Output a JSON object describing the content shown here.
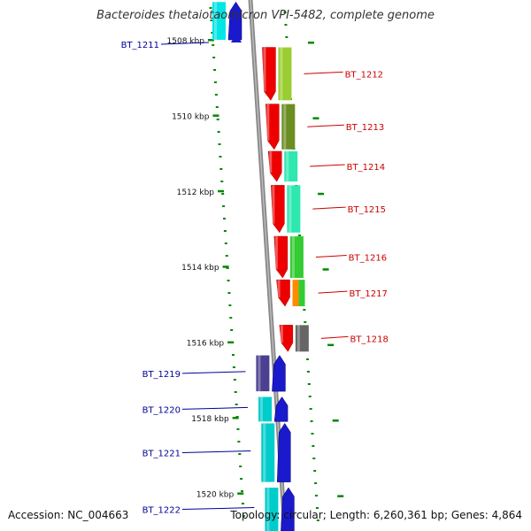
{
  "title": "Bacteroides thetaiotaomicron VPI-5482, complete genome",
  "footer": {
    "accession_label": "Accession:",
    "accession": "NC_004663",
    "topology_label": "Topology:",
    "topology": "circular",
    "length_label": "Length:",
    "length": "6,260,361 bp",
    "genes_label": "Genes:",
    "genes": "4,864"
  },
  "ticks": [
    {
      "label": "1508 kbp",
      "kbp": 1508
    },
    {
      "label": "1510 kbp",
      "kbp": 1510
    },
    {
      "label": "1512 kbp",
      "kbp": 1512
    },
    {
      "label": "1514 kbp",
      "kbp": 1514
    },
    {
      "label": "1516 kbp",
      "kbp": 1516
    },
    {
      "label": "1518 kbp",
      "kbp": 1518
    },
    {
      "label": "1520 kbp",
      "kbp": 1520
    }
  ],
  "genes": [
    {
      "name": "BT_1211",
      "strand": "forward",
      "start_kbp": 1507.0,
      "end_kbp": 1508.0,
      "color": "#1a1acc",
      "cog_color": "#00e5e5"
    },
    {
      "name": "BT_1212",
      "strand": "reverse",
      "start_kbp": 1508.2,
      "end_kbp": 1509.6,
      "color": "#ee0000",
      "cog_color": "#9acd32"
    },
    {
      "name": "BT_1213",
      "strand": "reverse",
      "start_kbp": 1509.7,
      "end_kbp": 1510.9,
      "color": "#ee0000",
      "cog_color": "#6b8e23"
    },
    {
      "name": "BT_1214",
      "strand": "reverse",
      "start_kbp": 1510.95,
      "end_kbp": 1511.75,
      "color": "#ee0000",
      "cog_color": "#2ee8b0"
    },
    {
      "name": "BT_1215",
      "strand": "reverse",
      "start_kbp": 1511.85,
      "end_kbp": 1513.1,
      "color": "#ee0000",
      "cog_color": "#2ee8b0"
    },
    {
      "name": "BT_1216",
      "strand": "reverse",
      "start_kbp": 1513.2,
      "end_kbp": 1514.3,
      "color": "#ee0000",
      "cog_color": "#33cc33"
    },
    {
      "name": "BT_1217",
      "strand": "reverse",
      "start_kbp": 1514.35,
      "end_kbp": 1515.05,
      "color": "#ee0000",
      "cog_color": "#ff8c00",
      "cog_color2": "#33cc33"
    },
    {
      "name": "BT_1218",
      "strand": "reverse",
      "start_kbp": 1515.55,
      "end_kbp": 1516.25,
      "color": "#ee0000",
      "cog_color": "#666666"
    },
    {
      "name": "BT_1219",
      "strand": "forward",
      "start_kbp": 1516.35,
      "end_kbp": 1517.3,
      "color": "#1a1acc",
      "cog_color": "#4b3f8f"
    },
    {
      "name": "BT_1220",
      "strand": "forward",
      "start_kbp": 1517.45,
      "end_kbp": 1518.1,
      "color": "#1a1acc",
      "cog_color": "#00cccc"
    },
    {
      "name": "BT_1221",
      "strand": "forward",
      "start_kbp": 1518.15,
      "end_kbp": 1519.7,
      "color": "#1a1acc",
      "cog_color": "#00cccc"
    },
    {
      "name": "BT_1222",
      "strand": "forward",
      "start_kbp": 1519.85,
      "end_kbp": 1521.0,
      "color": "#1a1acc",
      "cog_color": "#00cccc"
    }
  ],
  "colors": {
    "forward_label": "#000099",
    "reverse_label": "#cc0000",
    "backbone": "#888888",
    "tick": "#008800"
  }
}
